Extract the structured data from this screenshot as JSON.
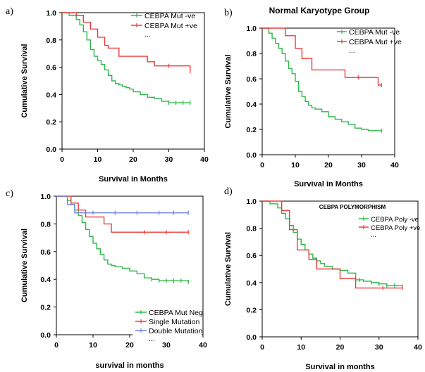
{
  "chart_data": [
    {
      "panel": "a)",
      "type": "line",
      "title": "",
      "xlabel": "Survival in Months",
      "ylabel": "Cumulative Survival",
      "xlim": [
        0,
        40
      ],
      "ylim": [
        0,
        1.0
      ],
      "x_ticks": [
        "0",
        "10",
        "20",
        "30",
        "40"
      ],
      "y_ticks": [
        "0.0",
        "0.2",
        "0.4",
        "0.6",
        "0.8",
        "1.0"
      ],
      "grid": false,
      "legend": "top-right",
      "legend_extra": "...",
      "series": [
        {
          "name": "CEBPA Mut -ve",
          "color": "#2db84a",
          "x": [
            0,
            2,
            4,
            5,
            6,
            7,
            8,
            9,
            10,
            11,
            12,
            13,
            14,
            15,
            16,
            17,
            18,
            19,
            20,
            22,
            24,
            26,
            28,
            30,
            32,
            34,
            36
          ],
          "y": [
            1.0,
            0.98,
            0.95,
            0.91,
            0.86,
            0.8,
            0.73,
            0.68,
            0.65,
            0.62,
            0.58,
            0.54,
            0.5,
            0.48,
            0.47,
            0.46,
            0.45,
            0.44,
            0.42,
            0.4,
            0.38,
            0.37,
            0.35,
            0.34,
            0.34,
            0.34,
            0.34
          ],
          "censored_x": [
            30,
            32,
            34,
            36
          ]
        },
        {
          "name": "CEBPA Mut +ve",
          "color": "#ee3b3b",
          "x": [
            0,
            4,
            6,
            8,
            10,
            12,
            13,
            16,
            24,
            26,
            36
          ],
          "y": [
            1.0,
            0.98,
            0.93,
            0.88,
            0.82,
            0.76,
            0.74,
            0.68,
            0.64,
            0.61,
            0.57
          ],
          "censored_x": [
            30,
            36
          ]
        }
      ]
    },
    {
      "panel": "b)",
      "type": "line",
      "title": "Normal Karyotype Group",
      "xlabel": "Survival in Months",
      "ylabel": "Cumulative Survival",
      "xlim": [
        0,
        40
      ],
      "ylim": [
        0,
        1.0
      ],
      "x_ticks": [
        "0",
        "10",
        "20",
        "30",
        "40"
      ],
      "y_ticks": [
        "0.0",
        "0.2",
        "0.4",
        "0.6",
        "0.8",
        "1.0"
      ],
      "grid": false,
      "legend": "top-right",
      "legend_extra": "...",
      "series": [
        {
          "name": "CEBPA Mut -ve",
          "color": "#2db84a",
          "x": [
            0,
            2,
            3,
            4,
            5,
            6,
            7,
            8,
            9,
            10,
            11,
            12,
            13,
            14,
            15,
            16,
            18,
            20,
            22,
            24,
            26,
            28,
            30,
            32,
            36
          ],
          "y": [
            1.0,
            0.96,
            0.92,
            0.88,
            0.84,
            0.8,
            0.74,
            0.68,
            0.64,
            0.58,
            0.5,
            0.46,
            0.42,
            0.39,
            0.37,
            0.36,
            0.34,
            0.3,
            0.28,
            0.26,
            0.24,
            0.21,
            0.2,
            0.19,
            0.19
          ],
          "censored_x": [
            36
          ]
        },
        {
          "name": "CEBPA Mut +ve",
          "color": "#ee3b3b",
          "x": [
            0,
            7,
            10,
            12,
            15,
            25,
            35,
            36
          ],
          "y": [
            1.0,
            0.94,
            0.84,
            0.76,
            0.67,
            0.61,
            0.55,
            0.55
          ],
          "censored_x": [
            29,
            36
          ]
        }
      ]
    },
    {
      "panel": "c)",
      "type": "line",
      "title": "",
      "xlabel": "survival in months",
      "ylabel": "Cumulative Survival",
      "xlim": [
        0,
        40
      ],
      "ylim": [
        0,
        1.0
      ],
      "x_ticks": [
        "0",
        "10",
        "20",
        "30",
        "40"
      ],
      "y_ticks": [
        "0.0",
        "0.2",
        "0.4",
        "0.6",
        "0.8",
        "1.0"
      ],
      "grid": false,
      "legend": "bottom-right",
      "legend_extra": "...",
      "series": [
        {
          "name": "CEBPA Mut Neg",
          "color": "#2db84a",
          "x": [
            0,
            3,
            4,
            5,
            6,
            7,
            8,
            9,
            10,
            11,
            12,
            13,
            14,
            15,
            16,
            18,
            20,
            22,
            24,
            26,
            28,
            30,
            36
          ],
          "y": [
            1.0,
            0.97,
            0.94,
            0.9,
            0.86,
            0.81,
            0.76,
            0.71,
            0.66,
            0.62,
            0.58,
            0.54,
            0.51,
            0.5,
            0.49,
            0.48,
            0.46,
            0.44,
            0.41,
            0.4,
            0.39,
            0.39,
            0.38
          ],
          "censored_x": [
            26,
            28,
            30,
            32,
            34,
            36
          ]
        },
        {
          "name": "Single Mutation",
          "color": "#ee3b3b",
          "x": [
            0,
            4,
            6,
            8,
            13,
            15,
            36
          ],
          "y": [
            1.0,
            0.95,
            0.9,
            0.85,
            0.8,
            0.74,
            0.74
          ],
          "censored_x": [
            24,
            30,
            36
          ]
        },
        {
          "name": "Double Mutation",
          "color": "#6b82e6",
          "x": [
            0,
            3,
            5,
            36
          ],
          "y": [
            1.0,
            0.94,
            0.88,
            0.88
          ],
          "censored_x": [
            10,
            16,
            22,
            28,
            32,
            36
          ]
        }
      ]
    },
    {
      "panel": "d)",
      "type": "line",
      "title": "CEBPA POLYMORPHISM",
      "xlabel": "Survival in months",
      "ylabel": "Cumulative Survival",
      "xlim": [
        0,
        40
      ],
      "ylim": [
        0,
        1.0
      ],
      "x_ticks": [
        "0",
        "10",
        "20",
        "30",
        "40"
      ],
      "y_ticks": [
        "0.0",
        "0.2",
        "0.4",
        "0.6",
        "0.8",
        "1.0"
      ],
      "grid": false,
      "legend": "top-right",
      "legend_extra": "...",
      "series": [
        {
          "name": "CEBPA Poly -ve",
          "color": "#2db84a",
          "x": [
            0,
            2,
            4,
            5,
            6,
            7,
            8,
            9,
            10,
            11,
            12,
            13,
            14,
            15,
            16,
            18,
            20,
            22,
            24,
            26,
            28,
            30,
            32,
            34,
            36
          ],
          "y": [
            1.0,
            0.98,
            0.95,
            0.91,
            0.87,
            0.82,
            0.77,
            0.72,
            0.68,
            0.64,
            0.61,
            0.58,
            0.56,
            0.54,
            0.52,
            0.5,
            0.49,
            0.47,
            0.42,
            0.41,
            0.4,
            0.39,
            0.38,
            0.38,
            0.37
          ],
          "censored_x": [
            25,
            28,
            30,
            32,
            34,
            36
          ]
        },
        {
          "name": "CEBPA Poly +ve",
          "color": "#ee3b3b",
          "x": [
            0,
            5,
            7,
            9,
            12,
            14,
            17,
            20,
            24,
            36
          ],
          "y": [
            1.0,
            0.93,
            0.79,
            0.64,
            0.57,
            0.5,
            0.5,
            0.43,
            0.36,
            0.36
          ],
          "censored_x": [
            31,
            36
          ]
        }
      ]
    }
  ]
}
